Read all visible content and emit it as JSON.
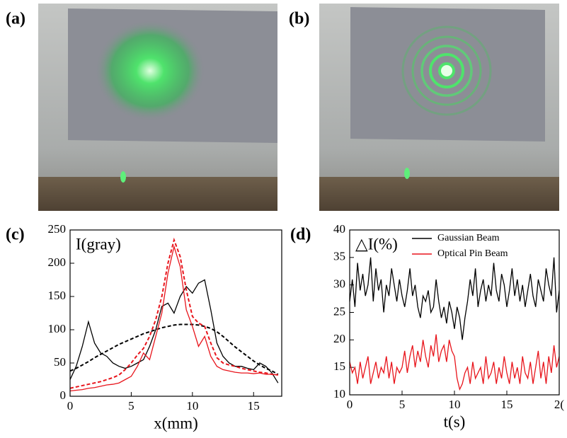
{
  "panel_labels": [
    "(a)",
    "(b)"
  ],
  "chart_data": [
    {
      "type": "line",
      "panel": "(c)",
      "annotation": "I(gray)",
      "x_label": "x(mm)",
      "xlim": [
        0,
        17.3
      ],
      "xticks": [
        0,
        5,
        10,
        15
      ],
      "ylim": [
        0,
        250
      ],
      "yticks": [
        0,
        50,
        100,
        150,
        200,
        250
      ],
      "x": [
        0,
        0.5,
        1,
        1.5,
        2,
        2.5,
        3,
        3.5,
        4,
        4.5,
        5,
        5.5,
        6,
        6.5,
        7,
        7.5,
        8,
        8.5,
        9,
        9.5,
        10,
        10.5,
        11,
        11.5,
        12,
        12.5,
        13,
        13.5,
        14,
        14.5,
        15,
        15.5,
        16,
        16.5,
        17
      ],
      "series": [
        {
          "color": "#000000",
          "dash": false,
          "values": [
            25,
            45,
            75,
            112,
            80,
            65,
            60,
            50,
            45,
            42,
            45,
            50,
            55,
            75,
            100,
            135,
            140,
            125,
            150,
            165,
            155,
            170,
            175,
            130,
            80,
            60,
            50,
            45,
            45,
            42,
            40,
            50,
            45,
            35,
            20
          ]
        },
        {
          "color": "#000000",
          "dash": true,
          "values": [
            38,
            42,
            47,
            52,
            58,
            63,
            68,
            73,
            78,
            82,
            86,
            90,
            94,
            97,
            100,
            103,
            105,
            107,
            108,
            108,
            108,
            107,
            105,
            102,
            97,
            90,
            82,
            74,
            67,
            60,
            53,
            47,
            42,
            38,
            33
          ]
        },
        {
          "color": "#e8141b",
          "dash": false,
          "values": [
            8,
            9,
            10,
            12,
            13,
            15,
            17,
            18,
            20,
            25,
            30,
            45,
            65,
            55,
            90,
            125,
            185,
            225,
            195,
            130,
            105,
            75,
            90,
            60,
            45,
            40,
            38,
            36,
            35,
            35,
            34,
            35,
            33,
            33,
            32
          ]
        },
        {
          "color": "#e8141b",
          "dash": true,
          "values": [
            12,
            14,
            16,
            18,
            20,
            22,
            25,
            28,
            32,
            40,
            50,
            62,
            72,
            90,
            115,
            150,
            200,
            235,
            210,
            160,
            120,
            110,
            105,
            80,
            58,
            50,
            47,
            45,
            42,
            40,
            38,
            36,
            35,
            33,
            32
          ]
        }
      ]
    },
    {
      "type": "line",
      "panel": "(d)",
      "annotation": "△I(%)",
      "x_label": "t(s)",
      "xlim": [
        0,
        20
      ],
      "xticks": [
        0,
        5,
        10,
        15,
        {
          "value": 20,
          "label": "2("
        }
      ],
      "ylim": [
        10,
        40
      ],
      "yticks": [
        10,
        15,
        20,
        25,
        30,
        35,
        40
      ],
      "legend": "top-right",
      "x": [
        0,
        0.25,
        0.5,
        0.75,
        1,
        1.25,
        1.5,
        1.75,
        2,
        2.25,
        2.5,
        2.75,
        3,
        3.25,
        3.5,
        3.75,
        4,
        4.25,
        4.5,
        4.75,
        5,
        5.25,
        5.5,
        5.75,
        6,
        6.25,
        6.5,
        6.75,
        7,
        7.25,
        7.5,
        7.75,
        8,
        8.25,
        8.5,
        8.75,
        9,
        9.25,
        9.5,
        9.75,
        10,
        10.25,
        10.5,
        10.75,
        11,
        11.25,
        11.5,
        11.75,
        12,
        12.25,
        12.5,
        12.75,
        13,
        13.25,
        13.5,
        13.75,
        14,
        14.25,
        14.5,
        14.75,
        15,
        15.25,
        15.5,
        15.75,
        16,
        16.25,
        16.5,
        16.75,
        17,
        17.25,
        17.5,
        17.75,
        18,
        18.25,
        18.5,
        18.75,
        19,
        19.25,
        19.5,
        19.75,
        20
      ],
      "series": [
        {
          "name": "Gaussian Beam",
          "color": "#000000",
          "values": [
            27,
            31,
            26,
            34,
            29,
            32,
            28,
            30,
            35,
            27,
            33,
            29,
            31,
            25,
            30,
            28,
            33,
            30,
            27,
            31,
            28,
            26,
            29,
            33,
            28,
            30,
            26,
            24,
            28,
            27,
            29,
            25,
            26,
            31,
            27,
            24,
            26,
            23,
            27,
            25,
            22,
            26,
            24,
            20,
            24,
            27,
            31,
            28,
            33,
            26,
            29,
            31,
            27,
            30,
            28,
            34,
            29,
            27,
            32,
            30,
            26,
            29,
            33,
            28,
            31,
            27,
            30,
            26,
            29,
            32,
            28,
            26,
            31,
            29,
            27,
            33,
            30,
            28,
            35,
            25,
            29
          ]
        },
        {
          "name": "Optical Pin Beam",
          "color": "#e8141b",
          "values": [
            16,
            14,
            15,
            12,
            16,
            13,
            15,
            17,
            12,
            14,
            16,
            13,
            15,
            14,
            17,
            13,
            16,
            12,
            15,
            14,
            15,
            18,
            14,
            17,
            19,
            15,
            18,
            16,
            20,
            17,
            15,
            19,
            17,
            21,
            16,
            18,
            19,
            16,
            20,
            18,
            17,
            13,
            11,
            12,
            14,
            15,
            12,
            16,
            13,
            14,
            15,
            12,
            17,
            13,
            14,
            16,
            12,
            15,
            13,
            17,
            14,
            12,
            16,
            13,
            15,
            12,
            17,
            14,
            13,
            16,
            12,
            15,
            18,
            13,
            16,
            12,
            17,
            14,
            19,
            15,
            17
          ]
        }
      ]
    }
  ]
}
